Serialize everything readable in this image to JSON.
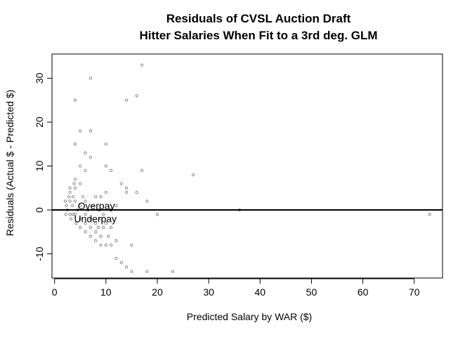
{
  "chart_data": {
    "type": "scatter",
    "title": "Residuals of CVSL Auction Draft",
    "subtitle": "Hitter Salaries When Fit to a 3rd deg. GLM",
    "xlabel": "Predicted Salary by WAR ($)",
    "ylabel": "Residuals   (Actual $ - Predicted $)",
    "xlim": [
      -0.5,
      75.5
    ],
    "ylim": [
      -15.5,
      35.5
    ],
    "xticks": [
      0,
      10,
      20,
      30,
      40,
      50,
      60,
      70
    ],
    "yticks": [
      -10,
      0,
      10,
      20,
      30
    ],
    "reference_line_y": 0,
    "annotations": [
      {
        "text": "Overpay",
        "x": 4.5,
        "y": 1
      },
      {
        "text": "Underpay",
        "x": 3.8,
        "y": -2
      }
    ],
    "point_color": "#808080",
    "points": [
      [
        2.1,
        2
      ],
      [
        2.2,
        -1
      ],
      [
        2.3,
        1
      ],
      [
        2.5,
        0
      ],
      [
        2.8,
        3
      ],
      [
        3,
        5
      ],
      [
        3,
        4
      ],
      [
        3,
        2
      ],
      [
        3,
        -1
      ],
      [
        3.2,
        -2
      ],
      [
        3.5,
        1
      ],
      [
        3.6,
        3
      ],
      [
        3.6,
        -1
      ],
      [
        3.8,
        6
      ],
      [
        4,
        25
      ],
      [
        4,
        15
      ],
      [
        4,
        7
      ],
      [
        4,
        5
      ],
      [
        4,
        2
      ],
      [
        4,
        -1
      ],
      [
        4.2,
        -3
      ],
      [
        4.5,
        0
      ],
      [
        5,
        18
      ],
      [
        5,
        10
      ],
      [
        5,
        6
      ],
      [
        5,
        1
      ],
      [
        5,
        -2
      ],
      [
        5,
        -4
      ],
      [
        5.5,
        3
      ],
      [
        6,
        13
      ],
      [
        6,
        9
      ],
      [
        6,
        2
      ],
      [
        6,
        -1
      ],
      [
        6,
        -3
      ],
      [
        6,
        -5
      ],
      [
        6.5,
        0
      ],
      [
        7,
        30
      ],
      [
        7,
        18
      ],
      [
        7,
        12
      ],
      [
        7,
        -2
      ],
      [
        7,
        -4
      ],
      [
        7,
        -6
      ],
      [
        7.5,
        1
      ],
      [
        8,
        3
      ],
      [
        8,
        -3
      ],
      [
        8,
        -5
      ],
      [
        8,
        -7
      ],
      [
        8.5,
        0
      ],
      [
        8.5,
        -4
      ],
      [
        9,
        3
      ],
      [
        9,
        -2
      ],
      [
        9,
        -6
      ],
      [
        9,
        -8
      ],
      [
        9.5,
        -1
      ],
      [
        9.5,
        -4
      ],
      [
        10,
        15
      ],
      [
        10,
        10
      ],
      [
        10,
        4
      ],
      [
        10,
        -3
      ],
      [
        10,
        -8
      ],
      [
        10.5,
        -6
      ],
      [
        11,
        9
      ],
      [
        11,
        0
      ],
      [
        11,
        -4
      ],
      [
        11,
        -8
      ],
      [
        12,
        1
      ],
      [
        12,
        -7
      ],
      [
        12,
        -11
      ],
      [
        13,
        6
      ],
      [
        13,
        -12
      ],
      [
        14,
        25
      ],
      [
        14,
        5
      ],
      [
        14,
        4
      ],
      [
        14,
        -13
      ],
      [
        15,
        -8
      ],
      [
        15,
        -14
      ],
      [
        16,
        26
      ],
      [
        16,
        4
      ],
      [
        17,
        33
      ],
      [
        17,
        9
      ],
      [
        18,
        2
      ],
      [
        18,
        -14
      ],
      [
        20,
        -1
      ],
      [
        23,
        -14
      ],
      [
        27,
        8
      ],
      [
        36,
        0
      ],
      [
        73,
        -1
      ]
    ]
  }
}
